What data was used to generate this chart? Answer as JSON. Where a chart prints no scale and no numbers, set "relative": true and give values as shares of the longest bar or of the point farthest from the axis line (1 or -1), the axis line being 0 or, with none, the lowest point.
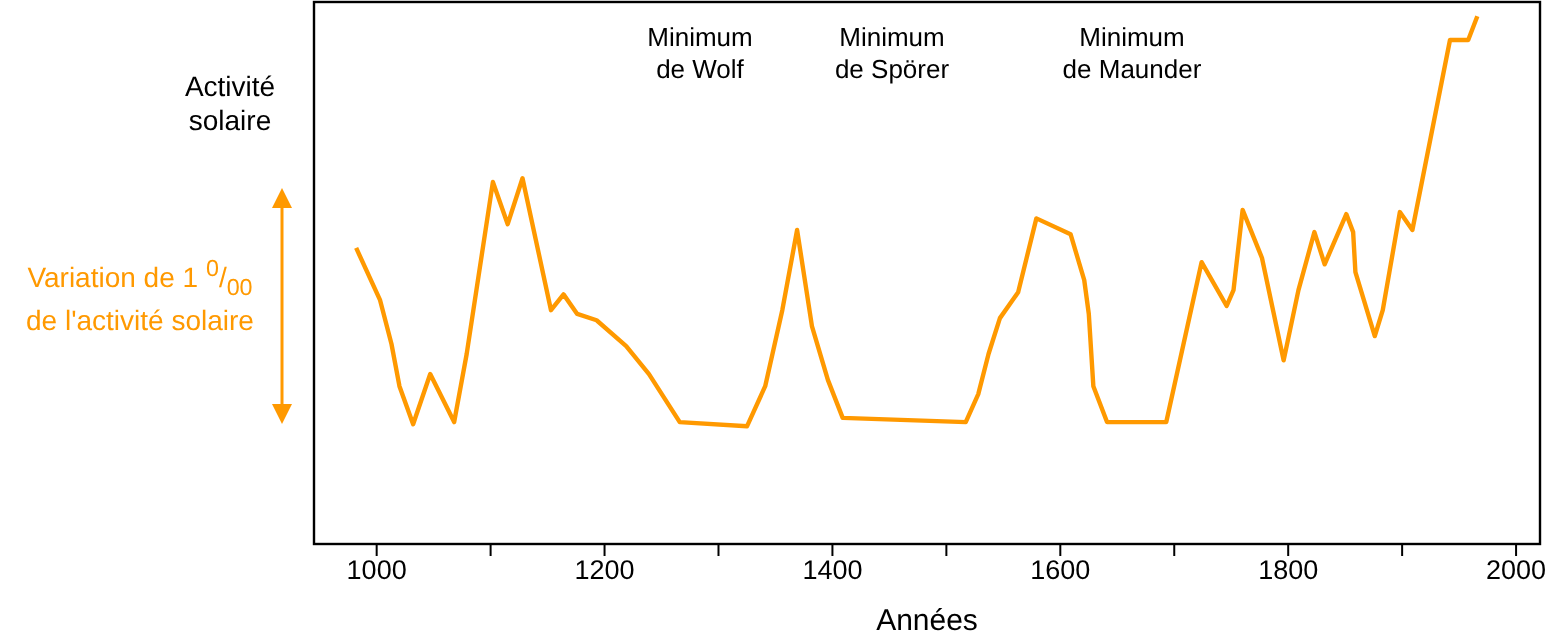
{
  "chart_data": {
    "type": "line",
    "relative": true,
    "xlabel": "Années",
    "ylabel": "Activité solaire",
    "xlim": [
      945,
      2021
    ],
    "xticks": [
      1000,
      {
        "value": 1100,
        "label": null
      },
      1200,
      {
        "value": 1300,
        "label": null
      },
      1400,
      {
        "value": 1500,
        "label": null
      },
      1600,
      {
        "value": 1700,
        "label": null
      },
      1800,
      {
        "value": 1900,
        "label": null
      },
      2000
    ],
    "grid": false,
    "legend": false,
    "marker": "none",
    "line_style": "solid",
    "series": [
      {
        "color": "#ff9900",
        "x": [
          982,
          1003,
          1013,
          1020,
          1032,
          1047,
          1068,
          1079,
          1102,
          1115,
          1128,
          1153,
          1164,
          1176,
          1193,
          1219,
          1239,
          1266,
          1325,
          1341,
          1356,
          1369,
          1382,
          1396,
          1409,
          1517,
          1528,
          1537,
          1547,
          1563,
          1579,
          1609,
          1621,
          1625,
          1629,
          1641,
          1693,
          1724,
          1746,
          1752,
          1760,
          1777,
          1796,
          1809,
          1823,
          1832,
          1851,
          1857,
          1859,
          1876,
          1883,
          1898,
          1909,
          1942,
          1958,
          1966
        ],
        "values": [
          0.561,
          0.462,
          0.379,
          0.299,
          0.227,
          0.322,
          0.231,
          0.36,
          0.686,
          0.606,
          0.693,
          0.443,
          0.473,
          0.436,
          0.424,
          0.375,
          0.322,
          0.231,
          0.223,
          0.299,
          0.443,
          0.595,
          0.413,
          0.311,
          0.239,
          0.231,
          0.284,
          0.36,
          0.428,
          0.477,
          0.617,
          0.587,
          0.5,
          0.436,
          0.299,
          0.231,
          0.231,
          0.534,
          0.451,
          0.481,
          0.633,
          0.542,
          0.348,
          0.481,
          0.591,
          0.53,
          0.625,
          0.591,
          0.515,
          0.394,
          0.443,
          0.629,
          0.595,
          0.955,
          0.955,
          1.0
        ]
      }
    ],
    "annotations": [
      "Minimum de Wolf",
      "Minimum de Spörer",
      "Minimum de Maunder",
      "Variation de 1 $^{0}$/$_{00}$ de l'activité solaire"
    ]
  }
}
